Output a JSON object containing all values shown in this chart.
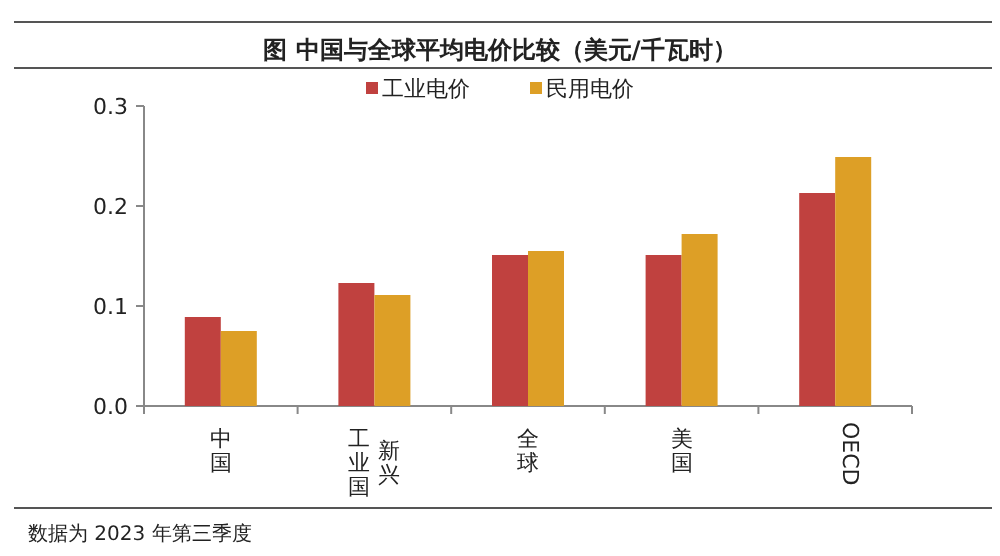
{
  "chart_data": {
    "type": "bar",
    "title": "图  中国与全球平均电价比较（美元/千瓦时）",
    "categories": [
      "中国",
      "新兴工业国",
      "全球",
      "美国",
      "OECD"
    ],
    "series": [
      {
        "name": "工业电价",
        "color": "#c0413f",
        "values": [
          0.089,
          0.123,
          0.151,
          0.151,
          0.213
        ]
      },
      {
        "name": "民用电价",
        "color": "#dd9f26",
        "values": [
          0.075,
          0.111,
          0.155,
          0.172,
          0.249
        ]
      }
    ],
    "ylim": [
      0,
      0.3
    ],
    "yticks": [
      {
        "value": 0,
        "label": "0.0"
      },
      {
        "value": 0.1,
        "label": "0.1"
      },
      {
        "value": 0.2,
        "label": "0.2"
      },
      {
        "value": 0.3,
        "label": "0.3"
      }
    ],
    "grid": false,
    "legend": "top",
    "annotations": [
      "数据为 2023 年第三季度"
    ]
  }
}
